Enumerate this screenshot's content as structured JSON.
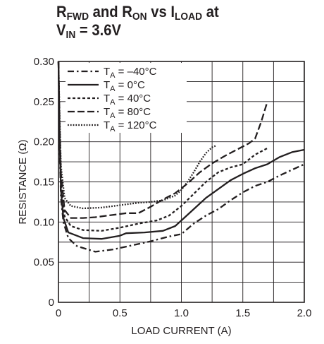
{
  "title": {
    "line1": {
      "r1": "R",
      "r1_sub": "FWD",
      "mid": " and R",
      "r2_sub": "ON",
      "vs": " vs I",
      "i_sub": "LOAD",
      "end": " at"
    },
    "line2": {
      "v": "V",
      "v_sub": "IN",
      "end": " = 3.6V"
    }
  },
  "chart_data": {
    "type": "line",
    "xlabel": "LOAD CURRENT (A)",
    "ylabel": "RESISTANCE (Ω)",
    "xlim": [
      0,
      2.0
    ],
    "ylim": [
      0,
      0.3
    ],
    "x_ticks": [
      0,
      0.5,
      1.0,
      1.5,
      2.0
    ],
    "x_tick_labels": [
      "0",
      "0.5",
      "1.0",
      "1.5",
      "2.0"
    ],
    "y_ticks": [
      0,
      0.05,
      0.1,
      0.15,
      0.2,
      0.25,
      0.3
    ],
    "y_tick_labels": [
      "0",
      "0.05",
      "0.10",
      "0.15",
      "0.20",
      "0.25",
      "0.30"
    ],
    "grid": true,
    "legend_position": "top-left",
    "series": [
      {
        "name_prefix": "T",
        "name_sub": "A",
        "name_suffix": " = –40°C",
        "dash": "dashdot",
        "points": [
          [
            0.0,
            0.3
          ],
          [
            0.01,
            0.19
          ],
          [
            0.02,
            0.13
          ],
          [
            0.04,
            0.1
          ],
          [
            0.08,
            0.08
          ],
          [
            0.15,
            0.07
          ],
          [
            0.3,
            0.063
          ],
          [
            0.45,
            0.066
          ],
          [
            0.6,
            0.071
          ],
          [
            0.75,
            0.076
          ],
          [
            0.9,
            0.082
          ],
          [
            1.0,
            0.085
          ],
          [
            1.1,
            0.098
          ],
          [
            1.2,
            0.108
          ],
          [
            1.3,
            0.116
          ],
          [
            1.4,
            0.127
          ],
          [
            1.5,
            0.137
          ],
          [
            1.6,
            0.145
          ],
          [
            1.7,
            0.15
          ],
          [
            1.8,
            0.158
          ],
          [
            1.9,
            0.165
          ],
          [
            2.0,
            0.172
          ]
        ]
      },
      {
        "name_prefix": "T",
        "name_sub": "A",
        "name_suffix": " = 0°C",
        "dash": "solid",
        "points": [
          [
            0.0,
            0.3
          ],
          [
            0.01,
            0.2
          ],
          [
            0.02,
            0.14
          ],
          [
            0.04,
            0.105
          ],
          [
            0.08,
            0.087
          ],
          [
            0.2,
            0.08
          ],
          [
            0.35,
            0.079
          ],
          [
            0.5,
            0.083
          ],
          [
            0.55,
            0.086
          ],
          [
            0.7,
            0.087
          ],
          [
            0.85,
            0.089
          ],
          [
            0.95,
            0.095
          ],
          [
            1.0,
            0.102
          ],
          [
            1.1,
            0.116
          ],
          [
            1.2,
            0.13
          ],
          [
            1.3,
            0.141
          ],
          [
            1.4,
            0.152
          ],
          [
            1.5,
            0.16
          ],
          [
            1.6,
            0.167
          ],
          [
            1.7,
            0.172
          ],
          [
            1.8,
            0.181
          ],
          [
            1.9,
            0.187
          ],
          [
            2.0,
            0.19
          ]
        ]
      },
      {
        "name_prefix": "T",
        "name_sub": "A",
        "name_suffix": " = 40°C",
        "dash": "short",
        "points": [
          [
            0.0,
            0.3
          ],
          [
            0.01,
            0.21
          ],
          [
            0.02,
            0.15
          ],
          [
            0.05,
            0.107
          ],
          [
            0.1,
            0.095
          ],
          [
            0.2,
            0.09
          ],
          [
            0.35,
            0.089
          ],
          [
            0.5,
            0.093
          ],
          [
            0.65,
            0.098
          ],
          [
            0.8,
            0.102
          ],
          [
            0.9,
            0.108
          ],
          [
            1.0,
            0.12
          ],
          [
            1.1,
            0.135
          ],
          [
            1.2,
            0.15
          ],
          [
            1.3,
            0.162
          ],
          [
            1.4,
            0.168
          ],
          [
            1.5,
            0.172
          ],
          [
            1.6,
            0.184
          ],
          [
            1.7,
            0.192
          ]
        ]
      },
      {
        "name_prefix": "T",
        "name_sub": "A",
        "name_suffix": " = 80°C",
        "dash": "long",
        "points": [
          [
            0.0,
            0.3
          ],
          [
            0.01,
            0.22
          ],
          [
            0.02,
            0.16
          ],
          [
            0.05,
            0.115
          ],
          [
            0.1,
            0.105
          ],
          [
            0.2,
            0.105
          ],
          [
            0.3,
            0.106
          ],
          [
            0.45,
            0.109
          ],
          [
            0.55,
            0.111
          ],
          [
            0.65,
            0.111
          ],
          [
            0.75,
            0.119
          ],
          [
            0.85,
            0.128
          ],
          [
            0.95,
            0.136
          ],
          [
            1.05,
            0.148
          ],
          [
            1.15,
            0.162
          ],
          [
            1.25,
            0.173
          ],
          [
            1.35,
            0.182
          ],
          [
            1.45,
            0.19
          ],
          [
            1.55,
            0.198
          ],
          [
            1.6,
            0.204
          ],
          [
            1.65,
            0.225
          ],
          [
            1.7,
            0.25
          ]
        ]
      },
      {
        "name_prefix": "T",
        "name_sub": "A",
        "name_suffix": " = 120°C",
        "dash": "dot",
        "points": [
          [
            0.0,
            0.3
          ],
          [
            0.01,
            0.23
          ],
          [
            0.02,
            0.17
          ],
          [
            0.05,
            0.13
          ],
          [
            0.1,
            0.12
          ],
          [
            0.2,
            0.117
          ],
          [
            0.35,
            0.118
          ],
          [
            0.5,
            0.121
          ],
          [
            0.65,
            0.124
          ],
          [
            0.75,
            0.125
          ],
          [
            0.85,
            0.127
          ],
          [
            0.95,
            0.133
          ],
          [
            1.0,
            0.14
          ],
          [
            1.05,
            0.15
          ],
          [
            1.1,
            0.162
          ],
          [
            1.15,
            0.175
          ],
          [
            1.2,
            0.186
          ],
          [
            1.25,
            0.193
          ],
          [
            1.28,
            0.195
          ]
        ]
      }
    ]
  }
}
